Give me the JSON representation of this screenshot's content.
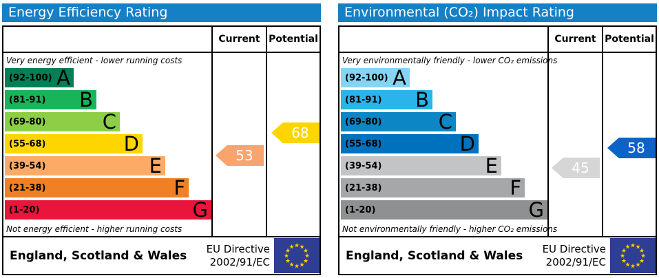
{
  "chart_data": [
    {
      "type": "bar",
      "title": "Energy Efficiency Rating",
      "subtitle_top": "Very energy efficient - lower running costs",
      "subtitle_bottom": "Not energy efficient - higher running costs",
      "bands": [
        {
          "letter": "A",
          "min": 92,
          "max": 100
        },
        {
          "letter": "B",
          "min": 81,
          "max": 91
        },
        {
          "letter": "C",
          "min": 69,
          "max": 80
        },
        {
          "letter": "D",
          "min": 55,
          "max": 68
        },
        {
          "letter": "E",
          "min": 39,
          "max": 54
        },
        {
          "letter": "F",
          "min": 21,
          "max": 38
        },
        {
          "letter": "G",
          "min": 1,
          "max": 20
        }
      ],
      "current": 53,
      "current_band": "E",
      "potential": 68,
      "potential_band": "D",
      "legend": [
        "Current",
        "Potential"
      ]
    },
    {
      "type": "bar",
      "title": "Environmental (CO₂) Impact Rating",
      "subtitle_top": "Very environmentally friendly - lower CO₂ emissions",
      "subtitle_bottom": "Not environmentally friendly - higher CO₂ emissions",
      "bands": [
        {
          "letter": "A",
          "min": 92,
          "max": 100
        },
        {
          "letter": "B",
          "min": 81,
          "max": 91
        },
        {
          "letter": "C",
          "min": 69,
          "max": 80
        },
        {
          "letter": "D",
          "min": 55,
          "max": 68
        },
        {
          "letter": "E",
          "min": 39,
          "max": 54
        },
        {
          "letter": "F",
          "min": 21,
          "max": 38
        },
        {
          "letter": "G",
          "min": 1,
          "max": 20
        }
      ],
      "current": 45,
      "current_band": "E",
      "potential": 58,
      "potential_band": "D",
      "legend": [
        "Current",
        "Potential"
      ]
    }
  ],
  "accent_header_blue": "#1580c6",
  "eu_flag": {
    "background": "#2e3e92",
    "star_color": "#ffcc00"
  },
  "panels": [
    {
      "title": "Energy Efficiency Rating",
      "current_header": "Current",
      "potential_header": "Potential",
      "top_caption": "Very energy efficient - lower running costs",
      "bottom_caption": "Not energy efficient - higher running costs",
      "bands": [
        {
          "range": "(92-100)",
          "letter": "A",
          "color": "#008054"
        },
        {
          "range": "(81-91)",
          "letter": "B",
          "color": "#19b459"
        },
        {
          "range": "(69-80)",
          "letter": "C",
          "color": "#8dce46"
        },
        {
          "range": "(55-68)",
          "letter": "D",
          "color": "#ffd500"
        },
        {
          "range": "(39-54)",
          "letter": "E",
          "color": "#fcaa65"
        },
        {
          "range": "(21-38)",
          "letter": "F",
          "color": "#ef8023"
        },
        {
          "range": "(1-20)",
          "letter": "G",
          "color": "#e9153b"
        }
      ],
      "current": {
        "value": "53",
        "color": "#f9a36e"
      },
      "potential": {
        "value": "68",
        "color": "#ffd500"
      },
      "footer": {
        "region": "England, Scotland & Wales",
        "directive1": "EU Directive",
        "directive2": "2002/91/EC"
      }
    },
    {
      "title": "Environmental (CO₂) Impact Rating",
      "current_header": "Current",
      "potential_header": "Potential",
      "top_caption": "Very environmentally friendly - lower CO₂ emissions",
      "bottom_caption": "Not environmentally friendly - higher CO₂ emissions",
      "bands": [
        {
          "range": "(92-100)",
          "letter": "A",
          "color": "#85d4f3"
        },
        {
          "range": "(81-91)",
          "letter": "B",
          "color": "#2ab4e9"
        },
        {
          "range": "(69-80)",
          "letter": "C",
          "color": "#0d86c5"
        },
        {
          "range": "(55-68)",
          "letter": "D",
          "color": "#0071bc"
        },
        {
          "range": "(39-54)",
          "letter": "E",
          "color": "#c2c4c5"
        },
        {
          "range": "(21-38)",
          "letter": "F",
          "color": "#a5a7a8"
        },
        {
          "range": "(1-20)",
          "letter": "G",
          "color": "#8e9091"
        }
      ],
      "current": {
        "value": "45",
        "color": "#d6d6d6"
      },
      "potential": {
        "value": "58",
        "color": "#0b63c8"
      },
      "footer": {
        "region": "England, Scotland & Wales",
        "directive1": "EU Directive",
        "directive2": "2002/91/EC"
      }
    }
  ]
}
